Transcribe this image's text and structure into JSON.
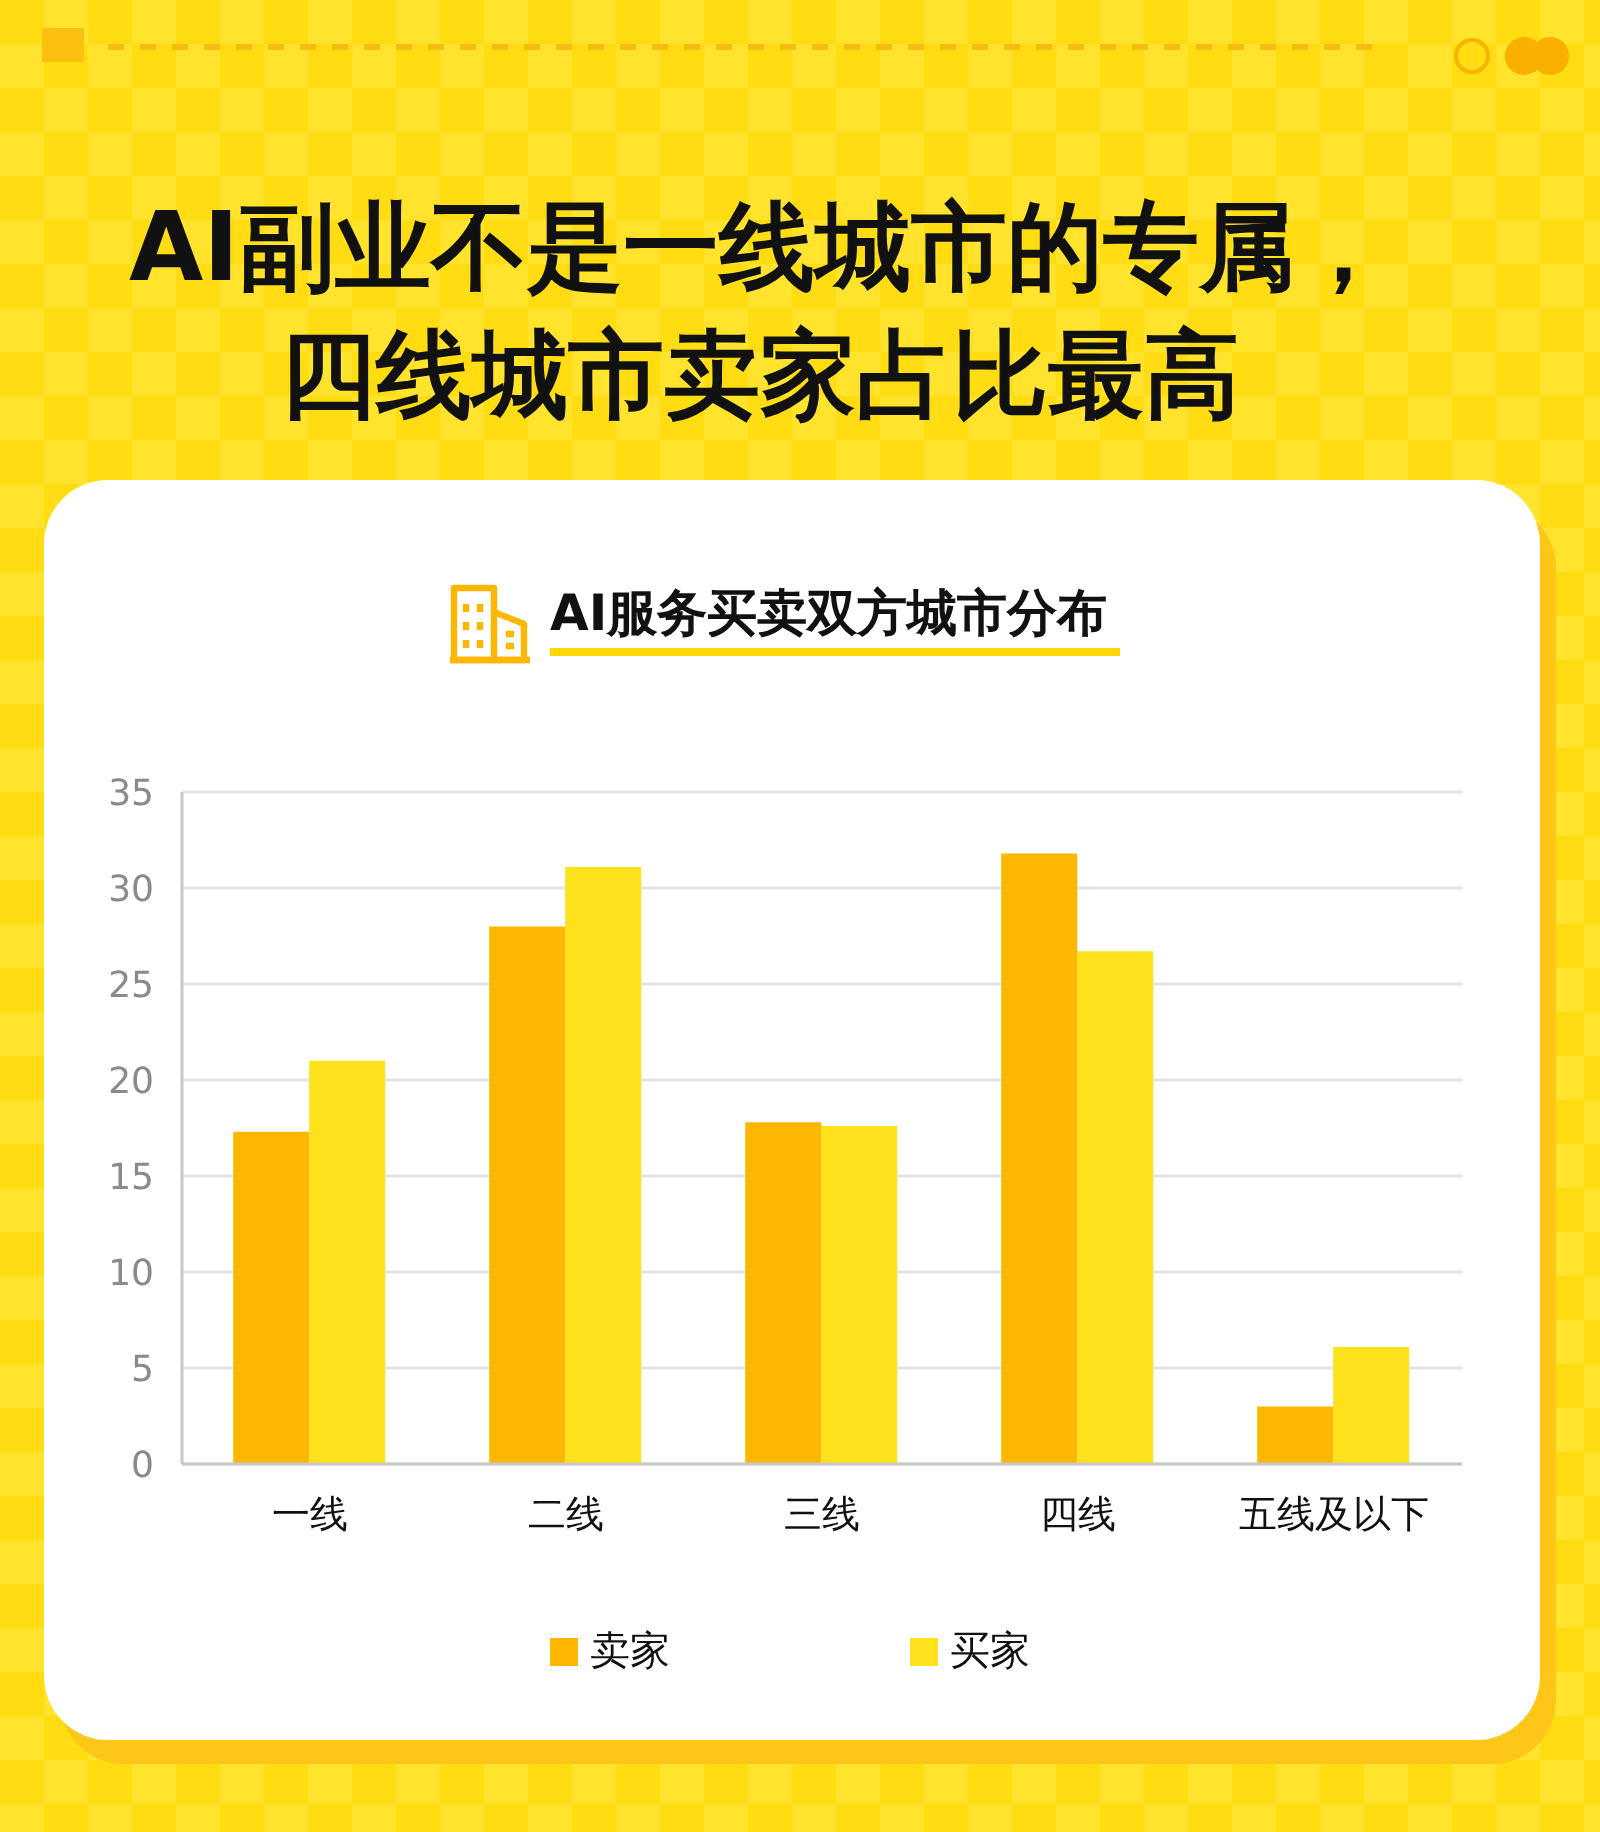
{
  "chart_data": {
    "type": "bar",
    "title": "AI副业不是一线城市的专属，四线城市卖家占比最高",
    "subtitle": "AI服务买卖双方城市分布",
    "categories": [
      "一线",
      "二线",
      "三线",
      "四线",
      "五线及以下"
    ],
    "series": [
      {
        "name": "卖家",
        "color": "#fdb700",
        "values": [
          17.3,
          28,
          17.8,
          31.8,
          3
        ]
      },
      {
        "name": "买家",
        "color": "#fde21b",
        "values": [
          21,
          31.1,
          17.6,
          26.7,
          6.1
        ]
      }
    ],
    "ylim": [
      0,
      35
    ],
    "yticks": [
      0,
      5,
      10,
      15,
      20,
      25,
      30,
      35
    ],
    "grid": "y",
    "legend": "bottom"
  }
}
